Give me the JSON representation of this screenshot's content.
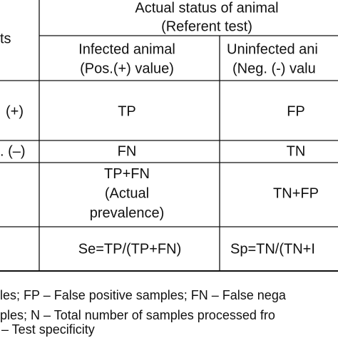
{
  "header": {
    "row_label": "ts",
    "group_title": [
      "Actual status of animal",
      "(Referent test)"
    ],
    "columns": [
      [
        "Infected animal",
        "(Pos.(+) value)"
      ],
      [
        "Uninfected ani",
        "(Neg. (-) valu"
      ]
    ]
  },
  "table": {
    "rows": [
      {
        "label": "(+)",
        "cells": [
          [
            "TP"
          ],
          [
            "FP"
          ]
        ]
      },
      {
        "label": ". (–)",
        "cells": [
          [
            "FN"
          ],
          [
            "TN"
          ]
        ]
      },
      {
        "label": null,
        "cells": [
          [
            "TP+FN",
            "(Actual",
            "prevalence)"
          ],
          [
            "TN+FP"
          ]
        ]
      },
      {
        "label": null,
        "cells": [
          [
            "Se=TP/(TP+FN)"
          ],
          [
            "Sp=TN/(TN+I"
          ]
        ]
      }
    ]
  },
  "footnotes": [
    "les; FP – False positive samples; FN – False nega",
    "ples; N –  Total number of samples processed fro",
    "– Test specificity"
  ]
}
